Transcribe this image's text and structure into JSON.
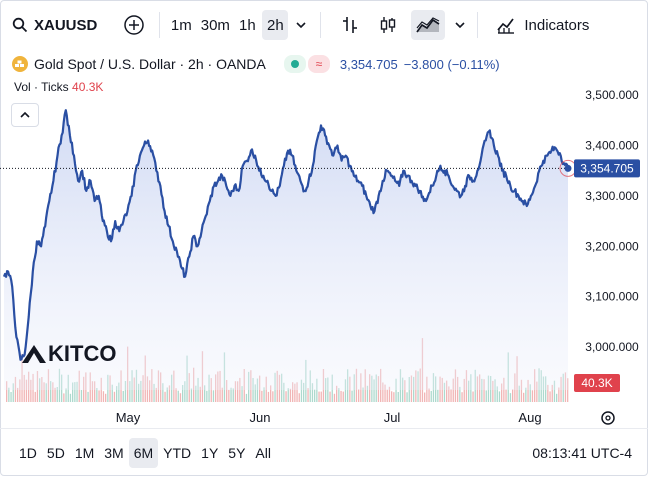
{
  "toolbar": {
    "symbol": "XAUUSD",
    "intervals": [
      "1m",
      "30m",
      "1h",
      "2h"
    ],
    "active_interval": "2h",
    "indicators_label": "Indicators"
  },
  "legend": {
    "title": "Gold Spot / U.S. Dollar · 2h · OANDA",
    "price": "3,354.705",
    "change": "−3.800 (−0.11%)"
  },
  "volume": {
    "label": "Vol · Ticks",
    "value": "40.3K",
    "current_label": "40.3K"
  },
  "watermark": "KITCO",
  "timeframes": [
    "1D",
    "5D",
    "1M",
    "3M",
    "6M",
    "YTD",
    "1Y",
    "5Y",
    "All"
  ],
  "active_timeframe": "6M",
  "clock": "08:13:41 UTC-4",
  "colors": {
    "line": "#2a4fa3",
    "area_top": "#dfe6f7",
    "vol_up": "#9fd2c4",
    "vol_down": "#efa8a8",
    "badge_bg": "#2a4fa3",
    "vol_badge": "#e0424c"
  },
  "chart_data": {
    "type": "line",
    "x_ticks": [
      "May",
      "Jun",
      "Jul",
      "Aug"
    ],
    "y_ticks": [
      "3,500.000",
      "3,400.000",
      "3,300.000",
      "3,200.000",
      "3,100.000",
      "3,000.000"
    ],
    "ylim": [
      2915,
      3530
    ],
    "last_value": 3354.705,
    "last_label": "3,354.705",
    "series": [
      {
        "values": [
          3140,
          3150,
          3120,
          3020,
          2975,
          2985,
          3060,
          3150,
          3210,
          3200,
          3240,
          3290,
          3330,
          3380,
          3420,
          3470,
          3420,
          3380,
          3330,
          3350,
          3310,
          3330,
          3290,
          3300,
          3250,
          3230,
          3210,
          3250,
          3230,
          3250,
          3270,
          3300,
          3350,
          3380,
          3400,
          3410,
          3390,
          3350,
          3320,
          3270,
          3240,
          3210,
          3190,
          3160,
          3140,
          3180,
          3220,
          3200,
          3230,
          3260,
          3290,
          3320,
          3330,
          3340,
          3320,
          3300,
          3320,
          3310,
          3360,
          3370,
          3390,
          3380,
          3350,
          3340,
          3330,
          3310,
          3300,
          3320,
          3360,
          3390,
          3380,
          3350,
          3330,
          3310,
          3330,
          3360,
          3410,
          3440,
          3420,
          3400,
          3380,
          3400,
          3370,
          3380,
          3360,
          3340,
          3330,
          3320,
          3300,
          3280,
          3270,
          3300,
          3330,
          3350,
          3340,
          3330,
          3320,
          3350,
          3340,
          3330,
          3320,
          3310,
          3290,
          3300,
          3320,
          3340,
          3360,
          3350,
          3340,
          3320,
          3310,
          3300,
          3320,
          3340,
          3330,
          3350,
          3380,
          3410,
          3430,
          3400,
          3380,
          3350,
          3340,
          3320,
          3310,
          3300,
          3290,
          3280,
          3300,
          3320,
          3350,
          3370,
          3380,
          3390,
          3395,
          3385,
          3365,
          3354.705
        ]
      }
    ]
  }
}
